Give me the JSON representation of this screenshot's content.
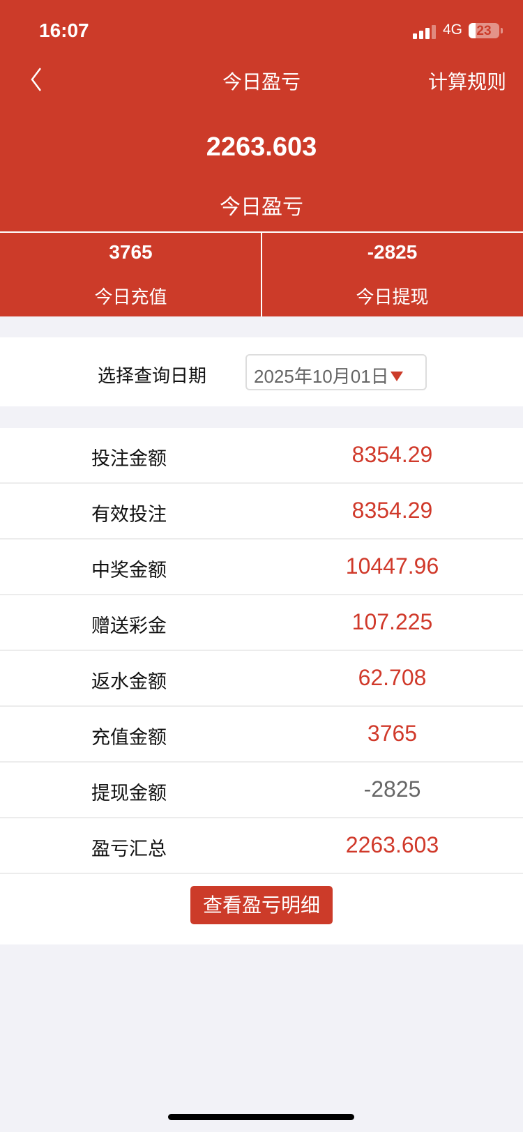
{
  "status_bar": {
    "time": "16:07",
    "network": "4G",
    "battery": "23"
  },
  "nav": {
    "back_icon": "chevron-left-icon",
    "title": "今日盈亏",
    "rule_link": "计算规则"
  },
  "summary": {
    "amount": "2263.603",
    "label": "今日盈亏"
  },
  "stats": [
    {
      "value": "3765",
      "label": "今日充值"
    },
    {
      "value": "-2825",
      "label": "今日提现"
    }
  ],
  "date_query": {
    "label": "选择查询日期",
    "selected": "2025年10月01日"
  },
  "rows": [
    {
      "label": "投注金额",
      "value": "8354.29"
    },
    {
      "label": "有效投注",
      "value": "8354.29"
    },
    {
      "label": "中奖金额",
      "value": "10447.96"
    },
    {
      "label": "赠送彩金",
      "value": "107.225"
    },
    {
      "label": "返水金额",
      "value": "62.708"
    },
    {
      "label": "充值金额",
      "value": "3765"
    },
    {
      "label": "提现金额",
      "value": "-2825"
    },
    {
      "label": "盈亏汇总",
      "value": "2263.603"
    }
  ],
  "detail_button": "查看盈亏明细",
  "colors": {
    "brand": "#CC3B29",
    "value_red": "#D0392A",
    "value_gray": "#666666",
    "background": "#F2F2F7"
  }
}
